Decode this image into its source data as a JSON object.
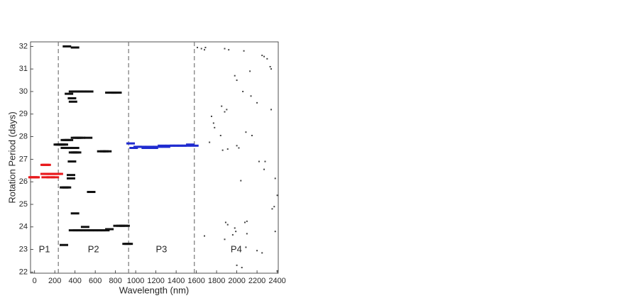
{
  "chart_data": {
    "type": "scatter",
    "xlabel": "Wavelength (nm)",
    "ylabel": "Rotation Period (days)",
    "xlim": [
      -40,
      2410
    ],
    "ylim": [
      21.95,
      32.2
    ],
    "xticks": [
      0,
      200,
      400,
      600,
      800,
      1000,
      1200,
      1400,
      1600,
      1800,
      2000,
      2200,
      2400
    ],
    "yticks": [
      22,
      23,
      24,
      25,
      26,
      27,
      28,
      29,
      30,
      31,
      32
    ],
    "dividers": [
      235,
      930,
      1580
    ],
    "regions": [
      "P1",
      "P2",
      "P3",
      "P4"
    ],
    "series": [
      {
        "color": "#e8191c",
        "x": [
          -20,
          -10,
          0,
          10,
          100,
          120,
          140,
          160,
          180,
          200,
          220,
          240,
          100,
          110,
          120,
          110,
          160,
          200
        ],
        "y": [
          26.2,
          26.2,
          26.2,
          26.2,
          26.35,
          26.35,
          26.35,
          26.35,
          26.35,
          26.35,
          26.35,
          26.35,
          26.75,
          26.75,
          26.75,
          26.2,
          26.2,
          26.2
        ]
      },
      {
        "color": "#111111",
        "x": [
          230,
          245,
          260,
          275,
          290,
          300,
          320,
          340,
          360,
          380,
          400,
          300,
          320,
          340,
          400,
          420,
          440,
          460,
          380,
          400,
          420,
          370,
          360,
          360,
          290,
          305,
          320,
          560,
          400,
          380,
          420,
          460,
          500,
          540,
          580,
          620,
          660,
          700,
          820,
          850,
          880,
          900,
          910,
          930,
          290,
          380,
          410,
          440,
          470,
          500,
          540,
          740,
          770,
          800,
          820,
          340,
          370,
          380,
          320,
          400,
          660,
          690,
          720,
          530,
          500,
          740
        ],
        "y": [
          27.65,
          27.65,
          27.65,
          27.65,
          27.65,
          27.5,
          27.5,
          27.5,
          27.5,
          27.5,
          27.5,
          27.85,
          27.85,
          27.85,
          27.95,
          27.95,
          27.95,
          27.95,
          27.3,
          27.3,
          27.3,
          26.9,
          26.3,
          26.15,
          25.75,
          25.75,
          25.75,
          25.55,
          24.6,
          23.85,
          23.85,
          23.85,
          23.85,
          23.85,
          23.85,
          23.85,
          23.85,
          23.85,
          24.05,
          24.05,
          24.05,
          24.05,
          23.25,
          23.25,
          23.2,
          30.0,
          30.0,
          30.0,
          30.0,
          30.0,
          30.0,
          29.95,
          29.95,
          29.95,
          29.95,
          29.9,
          29.7,
          29.55,
          32.0,
          31.95,
          27.35,
          27.35,
          27.35,
          27.95,
          24.0,
          23.9
        ]
      },
      {
        "color": "#1f2bd0",
        "x": [
          950,
          980,
          1020,
          1060,
          1100,
          1140,
          1180,
          1220,
          1260,
          1300,
          1340,
          1380,
          1420,
          1460,
          1500,
          1540,
          1580
        ],
        "y": [
          27.7,
          27.5,
          27.55,
          27.55,
          27.5,
          27.55,
          27.5,
          27.55,
          27.6,
          27.55,
          27.6,
          27.6,
          27.6,
          27.6,
          27.6,
          27.65,
          27.6
        ]
      },
      {
        "color": "#444444",
        "x": [
          1610,
          1650,
          1680,
          1690,
          1880,
          1920,
          2070,
          2250,
          2270,
          2300,
          2330,
          2340,
          1980,
          2000,
          2130,
          2060,
          2140,
          2200,
          2340,
          1850,
          1880,
          1900,
          1750,
          1770,
          1780,
          2090,
          2150,
          1840,
          1730,
          2020,
          1860,
          1910,
          2000,
          2280,
          2220,
          2270,
          2380,
          2040,
          2400,
          2370,
          2350,
          2080,
          2100,
          1910,
          1890,
          1960,
          2100,
          1980,
          1990,
          2380,
          1680,
          1880,
          2090,
          2200,
          2250,
          2000,
          2050,
          2400
        ],
        "y": [
          31.95,
          31.9,
          31.85,
          31.95,
          31.9,
          31.85,
          31.8,
          31.6,
          31.55,
          31.45,
          31.1,
          31.0,
          30.7,
          30.5,
          30.9,
          30.0,
          29.8,
          29.5,
          29.2,
          29.35,
          29.1,
          29.2,
          28.9,
          28.6,
          28.4,
          28.2,
          28.05,
          28.05,
          27.75,
          27.5,
          27.4,
          27.45,
          27.6,
          26.9,
          26.9,
          26.55,
          26.15,
          26.05,
          25.4,
          24.9,
          24.8,
          24.2,
          24.25,
          24.1,
          24.2,
          23.65,
          23.7,
          23.95,
          23.8,
          23.8,
          23.6,
          23.45,
          23.1,
          22.95,
          22.85,
          22.3,
          22.2,
          22.05
        ]
      }
    ]
  }
}
